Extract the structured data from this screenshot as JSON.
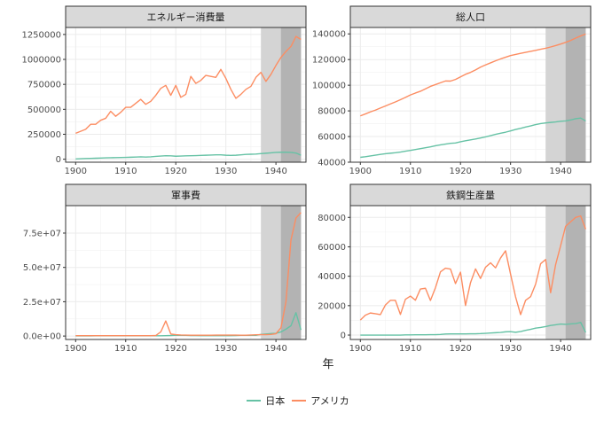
{
  "chart_data": {
    "type": "line",
    "xlabel": "年",
    "colors": {
      "japan": "#66c2a5",
      "usa": "#fc8d62",
      "shade_light": "#d4d4d4",
      "shade_dark": "#b3b3b3",
      "strip": "#d9d9d9"
    },
    "legend": {
      "position": "bottom",
      "items": [
        {
          "name": "日本",
          "color": "#66c2a5"
        },
        {
          "name": "アメリカ",
          "color": "#fc8d62"
        }
      ]
    },
    "shaded_ranges": [
      {
        "from": 1937,
        "to": 1945,
        "tone": "light"
      },
      {
        "from": 1941,
        "to": 1945,
        "tone": "dark"
      }
    ],
    "panels": [
      {
        "title": "エネルギー消費量",
        "xlim": [
          1898,
          1946
        ],
        "ylim": [
          -30000,
          1320000
        ],
        "xticks": [
          1900,
          1910,
          1920,
          1930,
          1940
        ],
        "yticks": [
          0,
          250000,
          500000,
          750000,
          1000000,
          1250000
        ],
        "ytick_labels": [
          "0",
          "250000",
          "500000",
          "750000",
          "1000000",
          "1250000"
        ],
        "x": [
          1900,
          1901,
          1902,
          1903,
          1904,
          1905,
          1906,
          1907,
          1908,
          1909,
          1910,
          1911,
          1912,
          1913,
          1914,
          1915,
          1916,
          1917,
          1918,
          1919,
          1920,
          1921,
          1922,
          1923,
          1924,
          1925,
          1926,
          1927,
          1928,
          1929,
          1930,
          1931,
          1932,
          1933,
          1934,
          1935,
          1936,
          1937,
          1938,
          1939,
          1940,
          1941,
          1942,
          1943,
          1944,
          1945
        ],
        "series": [
          {
            "name": "日本",
            "values": [
              3000,
              5000,
              7000,
              8000,
              10000,
              12000,
              14000,
              15000,
              16000,
              17000,
              18000,
              20000,
              22000,
              24000,
              22000,
              24000,
              28000,
              32000,
              35000,
              34000,
              30000,
              32000,
              34000,
              35000,
              36000,
              38000,
              40000,
              42000,
              44000,
              44000,
              40000,
              38000,
              40000,
              44000,
              48000,
              50000,
              52000,
              56000,
              60000,
              64000,
              68000,
              70000,
              70000,
              68000,
              62000,
              40000
            ]
          },
          {
            "name": "アメリカ",
            "values": [
              260000,
              280000,
              300000,
              350000,
              350000,
              390000,
              410000,
              480000,
              430000,
              470000,
              520000,
              520000,
              560000,
              600000,
              550000,
              580000,
              640000,
              710000,
              740000,
              640000,
              740000,
              620000,
              650000,
              830000,
              760000,
              790000,
              840000,
              830000,
              820000,
              900000,
              810000,
              700000,
              610000,
              650000,
              700000,
              730000,
              820000,
              870000,
              780000,
              850000,
              940000,
              1020000,
              1080000,
              1130000,
              1230000,
              1200000
            ]
          }
        ]
      },
      {
        "title": "総人口",
        "xlim": [
          1898,
          1946
        ],
        "ylim": [
          40000,
          145000
        ],
        "xticks": [
          1900,
          1910,
          1920,
          1930,
          1940
        ],
        "yticks": [
          40000,
          60000,
          80000,
          100000,
          120000,
          140000
        ],
        "ytick_labels": [
          "40000",
          "60000",
          "80000",
          "100000",
          "120000",
          "140000"
        ],
        "x": [
          1900,
          1901,
          1902,
          1903,
          1904,
          1905,
          1906,
          1907,
          1908,
          1909,
          1910,
          1911,
          1912,
          1913,
          1914,
          1915,
          1916,
          1917,
          1918,
          1919,
          1920,
          1921,
          1922,
          1923,
          1924,
          1925,
          1926,
          1927,
          1928,
          1929,
          1930,
          1931,
          1932,
          1933,
          1934,
          1935,
          1936,
          1937,
          1938,
          1939,
          1940,
          1941,
          1942,
          1943,
          1944,
          1945
        ],
        "series": [
          {
            "name": "日本",
            "values": [
              43800,
              44300,
              44900,
              45500,
              46100,
              46600,
              47000,
              47400,
              47900,
              48600,
              49200,
              49900,
              50600,
              51300,
              52000,
              52800,
              53500,
              54100,
              54700,
              55000,
              55900,
              56700,
              57400,
              58100,
              58900,
              59700,
              60700,
              61700,
              62600,
              63400,
              64400,
              65500,
              66400,
              67400,
              68300,
              69300,
              70100,
              70600,
              71000,
              71400,
              71900,
              72200,
              72900,
              73900,
              74400,
              72100
            ]
          },
          {
            "name": "アメリカ",
            "values": [
              76100,
              77600,
              79200,
              80600,
              82200,
              83800,
              85400,
              87000,
              88700,
              90500,
              92400,
              93900,
              95300,
              97200,
              99100,
              100500,
              101900,
              103300,
              103200,
              104500,
              106500,
              108500,
              110000,
              111900,
              114100,
              115800,
              117400,
              119000,
              120500,
              121800,
              123100,
              124000,
              124800,
              125600,
              126400,
              127200,
              128000,
              128800,
              129800,
              130900,
              132100,
              133400,
              134900,
              136700,
              138400,
              139900
            ]
          }
        ]
      },
      {
        "title": "軍事費",
        "xlim": [
          1898,
          1946
        ],
        "ylim": [
          -2500000,
          95000000
        ],
        "xticks": [
          1900,
          1910,
          1920,
          1930,
          1940
        ],
        "yticks": [
          0,
          25000000,
          50000000,
          75000000
        ],
        "ytick_labels": [
          "0.0e+00",
          "2.5e+07",
          "5.0e+07",
          "7.5e+07"
        ],
        "x": [
          1900,
          1901,
          1902,
          1903,
          1904,
          1905,
          1906,
          1907,
          1908,
          1909,
          1910,
          1911,
          1912,
          1913,
          1914,
          1915,
          1916,
          1917,
          1918,
          1919,
          1920,
          1921,
          1922,
          1923,
          1924,
          1925,
          1926,
          1927,
          1928,
          1929,
          1930,
          1931,
          1932,
          1933,
          1934,
          1935,
          1936,
          1937,
          1938,
          1939,
          1940,
          1941,
          1942,
          1943,
          1944,
          1945
        ],
        "series": [
          {
            "name": "日本",
            "values": [
              100000,
              100000,
              100000,
              100000,
              200000,
              300000,
              200000,
              200000,
              200000,
              200000,
              200000,
              200000,
              200000,
              200000,
              200000,
              200000,
              200000,
              200000,
              300000,
              400000,
              600000,
              500000,
              500000,
              400000,
              400000,
              300000,
              300000,
              300000,
              300000,
              300000,
              300000,
              300000,
              400000,
              500000,
              500000,
              500000,
              500000,
              1200000,
              1500000,
              1800000,
              2000000,
              3000000,
              5000000,
              7500000,
              17000000,
              4500000
            ]
          },
          {
            "name": "アメリカ",
            "values": [
              300000,
              300000,
              300000,
              300000,
              300000,
              300000,
              300000,
              300000,
              300000,
              300000,
              300000,
              300000,
              300000,
              300000,
              300000,
              300000,
              400000,
              3000000,
              11000000,
              1500000,
              1000000,
              800000,
              700000,
              600000,
              600000,
              600000,
              600000,
              600000,
              700000,
              700000,
              700000,
              700000,
              700000,
              600000,
              600000,
              800000,
              900000,
              1000000,
              1000000,
              1200000,
              1700000,
              6000000,
              25000000,
              70000000,
              86000000,
              90000000
            ]
          }
        ]
      },
      {
        "title": "鉄鋼生産量",
        "xlim": [
          1898,
          1946
        ],
        "ylim": [
          -3000,
          88000
        ],
        "xticks": [
          1900,
          1910,
          1920,
          1930,
          1940
        ],
        "yticks": [
          0,
          20000,
          40000,
          60000,
          80000
        ],
        "ytick_labels": [
          "0",
          "20000",
          "40000",
          "60000",
          "80000"
        ],
        "x": [
          1900,
          1901,
          1902,
          1903,
          1904,
          1905,
          1906,
          1907,
          1908,
          1909,
          1910,
          1911,
          1912,
          1913,
          1914,
          1915,
          1916,
          1917,
          1918,
          1919,
          1920,
          1921,
          1922,
          1923,
          1924,
          1925,
          1926,
          1927,
          1928,
          1929,
          1930,
          1931,
          1932,
          1933,
          1934,
          1935,
          1936,
          1937,
          1938,
          1939,
          1940,
          1941,
          1942,
          1943,
          1944,
          1945
        ],
        "series": [
          {
            "name": "日本",
            "values": [
              0,
              0,
              0,
              0,
              0,
              0,
              0,
              0,
              0,
              100,
              100,
              200,
              200,
              200,
              300,
              300,
              400,
              700,
              800,
              800,
              800,
              800,
              900,
              900,
              1000,
              1200,
              1400,
              1600,
              1800,
              2200,
              2300,
              1900,
              2400,
              3200,
              3900,
              4700,
              5200,
              5800,
              6500,
              7000,
              7500,
              7300,
              7600,
              7800,
              8600,
              1800
            ]
          },
          {
            "name": "アメリカ",
            "values": [
              10200,
              13500,
              15000,
              14500,
              13900,
              20400,
              23600,
              23600,
              14000,
              24300,
              26500,
              23700,
              31300,
              31800,
              23500,
              32200,
              43000,
              45500,
              44900,
              35000,
              42800,
              20100,
              35600,
              45000,
              38500,
              46100,
              49100,
              45700,
              52400,
              57300,
              41400,
              26000,
              13900,
              23600,
              26100,
              34600,
              48500,
              51400,
              28800,
              47900,
              60800,
              74000,
              77000,
              80000,
              81000,
              72000
            ]
          }
        ]
      }
    ]
  }
}
